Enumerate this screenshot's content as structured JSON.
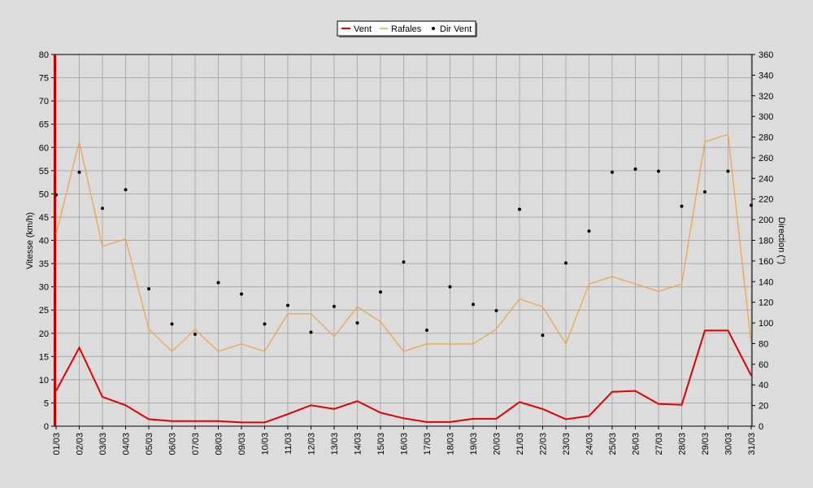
{
  "chart_data": {
    "type": "line",
    "categories": [
      "01/03",
      "02/03",
      "03/03",
      "04/03",
      "05/03",
      "06/03",
      "07/03",
      "08/03",
      "09/03",
      "10/03",
      "11/03",
      "12/03",
      "13/03",
      "14/03",
      "15/03",
      "16/03",
      "17/03",
      "18/03",
      "19/03",
      "20/03",
      "21/03",
      "22/03",
      "23/03",
      "24/03",
      "25/03",
      "26/03",
      "27/03",
      "28/03",
      "29/03",
      "30/03",
      "31/03"
    ],
    "ylabel": "Vitesse (km/h)",
    "y2label": "Direction (°)",
    "ylim": [
      0,
      80
    ],
    "y2lim": [
      0,
      360
    ],
    "yticks": [
      0,
      5,
      10,
      15,
      20,
      25,
      30,
      35,
      40,
      45,
      50,
      55,
      60,
      65,
      70,
      75,
      80
    ],
    "y2ticks": [
      0,
      20,
      40,
      60,
      80,
      100,
      120,
      140,
      160,
      180,
      200,
      220,
      240,
      260,
      280,
      300,
      320,
      340,
      360
    ],
    "grid": true,
    "legend_position": "top-center",
    "series": [
      {
        "name": "Vent",
        "type": "line",
        "color": "#e00000",
        "axis": "left",
        "values": [
          7.6,
          16.9,
          6.3,
          4.5,
          1.5,
          1.1,
          1.1,
          1.1,
          0.8,
          0.8,
          2.6,
          4.5,
          3.7,
          5.4,
          2.9,
          1.7,
          0.9,
          0.9,
          1.6,
          1.6,
          5.2,
          3.7,
          1.5,
          2.2,
          7.4,
          7.6,
          4.8,
          4.6,
          20.6,
          20.6,
          10.9
        ]
      },
      {
        "name": "Rafales",
        "type": "line",
        "color": "#f0a040",
        "axis": "left",
        "values": [
          41.3,
          61.2,
          38.7,
          40.3,
          20.9,
          16.1,
          20.8,
          16.1,
          17.7,
          16.1,
          24.2,
          24.2,
          19.3,
          25.7,
          22.5,
          16.1,
          17.7,
          17.7,
          17.7,
          20.9,
          27.4,
          25.7,
          17.7,
          30.6,
          32.2,
          30.6,
          29.0,
          30.6,
          61.2,
          62.8,
          17.7
        ]
      },
      {
        "name": "Dir Vent",
        "type": "scatter",
        "color": "#000000",
        "axis": "right",
        "values": [
          224,
          246,
          211,
          229,
          133,
          99,
          89,
          139,
          128,
          99,
          117,
          91,
          116,
          100,
          130,
          159,
          93,
          135,
          118,
          112,
          210,
          88,
          158,
          189,
          246,
          249,
          247,
          213,
          227,
          247,
          214
        ]
      }
    ]
  }
}
